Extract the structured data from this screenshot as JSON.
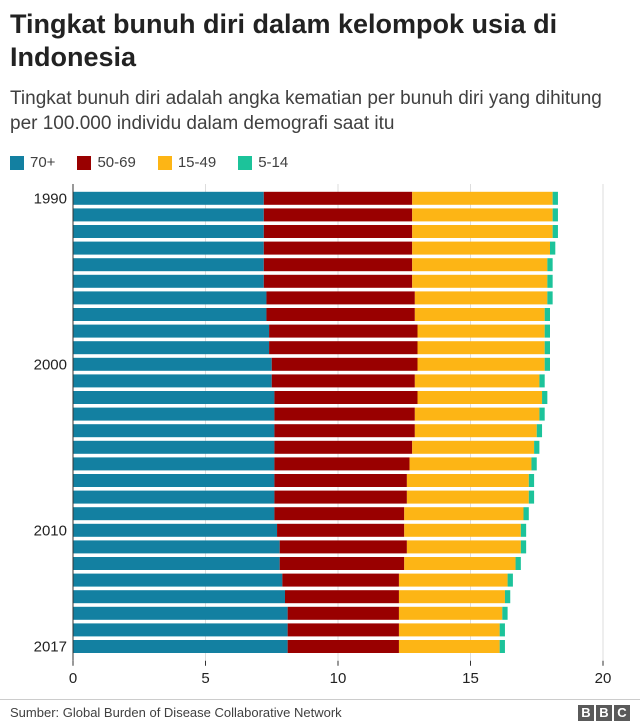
{
  "title": "Tingkat bunuh diri dalam kelompok usia di Indonesia",
  "subtitle": "Tingkat bunuh diri adalah angka kematian per bunuh diri yang dihitung per 100.000 individu dalam demografi saat itu",
  "source": "Sumber: Global Burden of Disease Collaborative Network",
  "logo": {
    "letters": [
      "B",
      "B",
      "C"
    ]
  },
  "legend": [
    {
      "label": "70+",
      "color": "#1380a1"
    },
    {
      "label": "50-69",
      "color": "#990000"
    },
    {
      "label": "15-49",
      "color": "#fdb515"
    },
    {
      "label": "5-14",
      "color": "#1cc39a"
    }
  ],
  "chart_data": {
    "type": "bar",
    "orientation": "horizontal",
    "stacked": true,
    "categories": [
      "1990",
      "1991",
      "1992",
      "1993",
      "1994",
      "1995",
      "1996",
      "1997",
      "1998",
      "1999",
      "2000",
      "2001",
      "2002",
      "2003",
      "2004",
      "2005",
      "2006",
      "2007",
      "2008",
      "2009",
      "2010",
      "2011",
      "2012",
      "2013",
      "2014",
      "2015",
      "2016",
      "2017"
    ],
    "y_tick_labels": [
      "1990",
      "2000",
      "2010",
      "2017"
    ],
    "x_ticks": [
      0,
      5,
      10,
      15,
      20
    ],
    "xlim": [
      0,
      20
    ],
    "grid": "vertical",
    "series": [
      {
        "name": "70+",
        "color": "#1380a1",
        "values": [
          7.2,
          7.2,
          7.2,
          7.2,
          7.2,
          7.2,
          7.3,
          7.3,
          7.4,
          7.4,
          7.5,
          7.5,
          7.6,
          7.6,
          7.6,
          7.6,
          7.6,
          7.6,
          7.6,
          7.6,
          7.7,
          7.8,
          7.8,
          7.9,
          8.0,
          8.1,
          8.1,
          8.1
        ]
      },
      {
        "name": "50-69",
        "color": "#990000",
        "values": [
          5.6,
          5.6,
          5.6,
          5.6,
          5.6,
          5.6,
          5.6,
          5.6,
          5.6,
          5.6,
          5.5,
          5.4,
          5.4,
          5.3,
          5.3,
          5.2,
          5.1,
          5.0,
          5.0,
          4.9,
          4.8,
          4.8,
          4.7,
          4.4,
          4.3,
          4.2,
          4.2,
          4.2
        ]
      },
      {
        "name": "15-49",
        "color": "#fdb515",
        "values": [
          5.3,
          5.3,
          5.3,
          5.2,
          5.1,
          5.1,
          5.0,
          4.9,
          4.8,
          4.8,
          4.8,
          4.7,
          4.7,
          4.7,
          4.6,
          4.6,
          4.6,
          4.6,
          4.6,
          4.5,
          4.4,
          4.3,
          4.2,
          4.1,
          4.0,
          3.9,
          3.8,
          3.8
        ]
      },
      {
        "name": "5-14",
        "color": "#1cc39a",
        "values": [
          0.2,
          0.2,
          0.2,
          0.2,
          0.2,
          0.2,
          0.2,
          0.2,
          0.2,
          0.2,
          0.2,
          0.2,
          0.2,
          0.2,
          0.2,
          0.2,
          0.2,
          0.2,
          0.2,
          0.2,
          0.2,
          0.2,
          0.2,
          0.2,
          0.2,
          0.2,
          0.2,
          0.2
        ]
      }
    ]
  }
}
